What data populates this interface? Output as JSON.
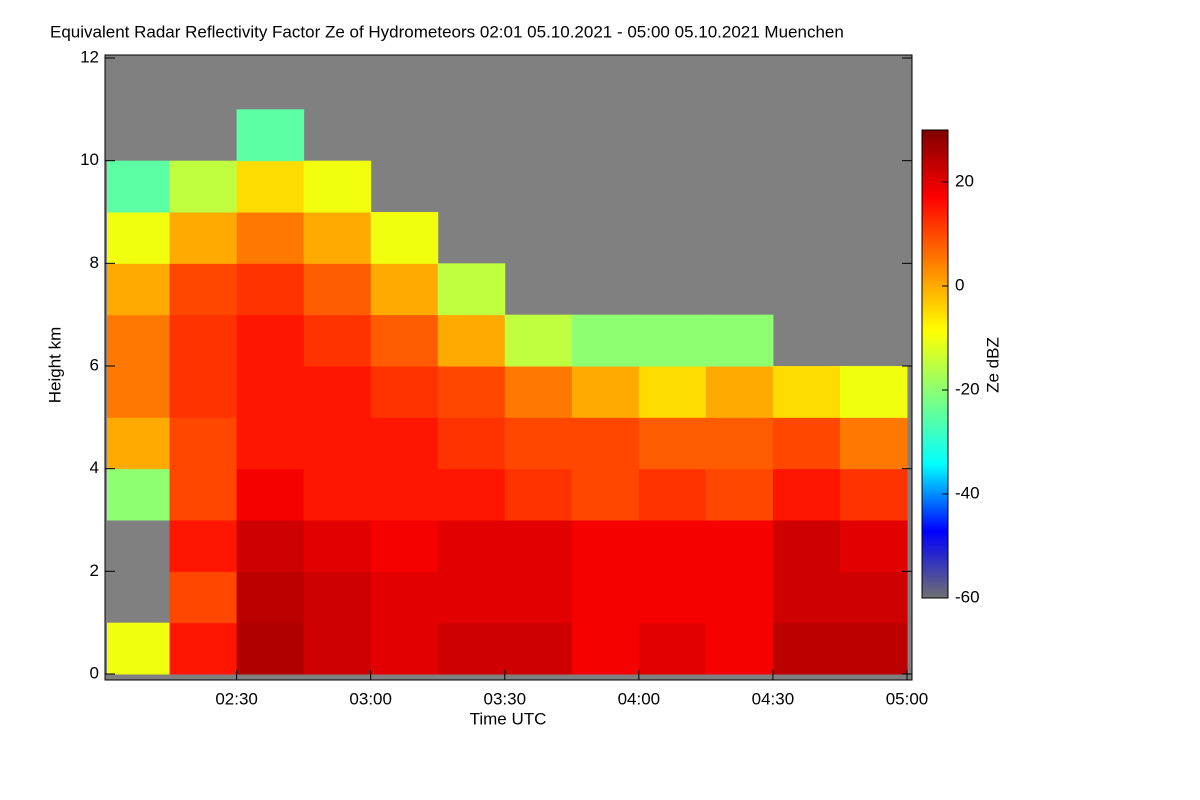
{
  "chart_data": {
    "type": "heatmap",
    "title": "Equivalent Radar Reflectivity Factor Ze of Hydrometeors   02:01 05.10.2021 - 05:00 05.10.2021 Muenchen",
    "x_label": "Time UTC",
    "y_label": "Height km",
    "colorbar_label": "Ze dBZ",
    "x_bins": [
      121,
      135,
      150,
      165,
      180,
      195,
      210,
      225,
      240,
      255,
      270,
      285,
      300
    ],
    "y_bins": [
      0,
      1,
      2,
      3,
      4,
      5,
      6,
      7,
      8,
      9,
      10,
      11,
      12
    ],
    "values": [
      [
        -10,
        15,
        25,
        22,
        20,
        22,
        22,
        18,
        20,
        18,
        24,
        24
      ],
      [
        null,
        10,
        24,
        22,
        20,
        20,
        20,
        18,
        18,
        18,
        22,
        22
      ],
      [
        null,
        15,
        22,
        20,
        18,
        20,
        20,
        18,
        18,
        18,
        22,
        20
      ],
      [
        -20,
        10,
        18,
        15,
        15,
        15,
        12,
        10,
        12,
        10,
        15,
        12
      ],
      [
        0,
        10,
        15,
        15,
        15,
        12,
        10,
        10,
        8,
        8,
        10,
        5
      ],
      [
        5,
        12,
        15,
        15,
        12,
        10,
        5,
        0,
        -5,
        0,
        -5,
        -10
      ],
      [
        5,
        12,
        15,
        12,
        8,
        0,
        -15,
        -20,
        -20,
        -20,
        null,
        null
      ],
      [
        0,
        10,
        12,
        8,
        0,
        -15,
        null,
        null,
        null,
        null,
        null,
        null
      ],
      [
        -10,
        0,
        5,
        0,
        -10,
        null,
        null,
        null,
        null,
        null,
        null,
        null
      ],
      [
        -25,
        -15,
        -5,
        -10,
        null,
        null,
        null,
        null,
        null,
        null,
        null,
        null
      ],
      [
        null,
        null,
        -25,
        null,
        null,
        null,
        null,
        null,
        null,
        null,
        null,
        null
      ],
      [
        null,
        null,
        null,
        null,
        null,
        null,
        null,
        null,
        null,
        null,
        null,
        null
      ]
    ],
    "xlim": [
      121,
      300
    ],
    "xticks": [
      {
        "value": 150,
        "label": "02:30"
      },
      {
        "value": 180,
        "label": "03:00"
      },
      {
        "value": 210,
        "label": "03:30"
      },
      {
        "value": 240,
        "label": "04:00"
      },
      {
        "value": 270,
        "label": "04:30"
      },
      {
        "value": 300,
        "label": "05:00"
      }
    ],
    "ylim": [
      0,
      12
    ],
    "yticks": [
      0,
      2,
      4,
      6,
      8,
      10,
      12
    ],
    "zlim": [
      -60,
      30
    ],
    "zticks": [
      -60,
      -40,
      -20,
      0,
      20
    ],
    "colorscale": [
      "#707070",
      "#0000ff",
      "#00ffff",
      "#7fff7f",
      "#ffff00",
      "#ff8000",
      "#ff0000",
      "#800000"
    ],
    "missing_color": "#808080"
  }
}
